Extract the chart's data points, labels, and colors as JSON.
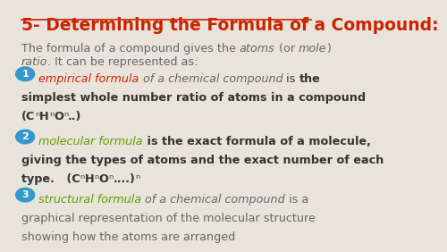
{
  "bg_color": "#e8e4dc",
  "title": "5- Determining the Formula of a Compound:",
  "title_color": "#cc2200",
  "title_fontsize": 13.5,
  "text_color_dark": "#666666",
  "text_color_bold": "#333333",
  "bullet_circle_color": "#3399cc",
  "bullet1_italic_color": "#cc2200",
  "bullet2_italic_color": "#669900",
  "bullet3_italic_color": "#669900",
  "text_fontsize": 9.2,
  "bullet_num_fontsize": 8.0
}
